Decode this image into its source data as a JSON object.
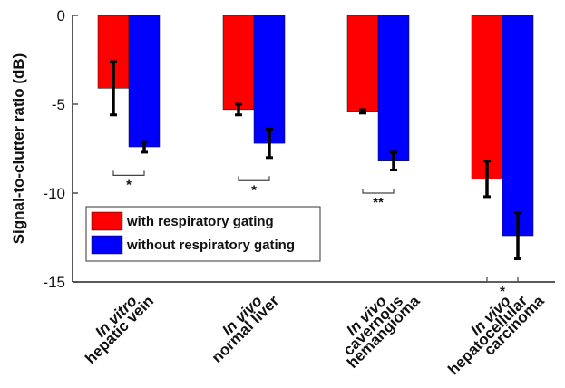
{
  "chart_data": {
    "type": "bar",
    "ylabel": "Signal-to-clutter ratio (dB)",
    "ylim": [
      -15,
      0
    ],
    "yticks": [
      "0",
      "-5",
      "-10",
      "-15"
    ],
    "categories": [
      {
        "prefix": "In vitro",
        "rest": [
          "hepatic vein"
        ]
      },
      {
        "prefix": "In vivo",
        "rest": [
          "normal liver"
        ]
      },
      {
        "prefix": "In vivo",
        "rest": [
          "cavernous",
          "hemangioma"
        ]
      },
      {
        "prefix": "In vivo",
        "rest": [
          "hepatocellular",
          "carcinoma"
        ]
      }
    ],
    "series": [
      {
        "name": "with respiratory gating",
        "color": "#ff0000",
        "values": [
          -4.1,
          -5.3,
          -5.4,
          -9.2
        ],
        "errors": [
          1.5,
          0.3,
          0.1,
          1.0
        ]
      },
      {
        "name": "without respiratory gating",
        "color": "#0000ff",
        "values": [
          -7.4,
          -7.2,
          -8.2,
          -12.4
        ],
        "errors": [
          0.3,
          0.8,
          0.5,
          1.3
        ]
      }
    ],
    "significance": [
      "*",
      "*",
      "**",
      "*"
    ],
    "legend": {
      "placement": "lower-left"
    },
    "grid": false
  }
}
